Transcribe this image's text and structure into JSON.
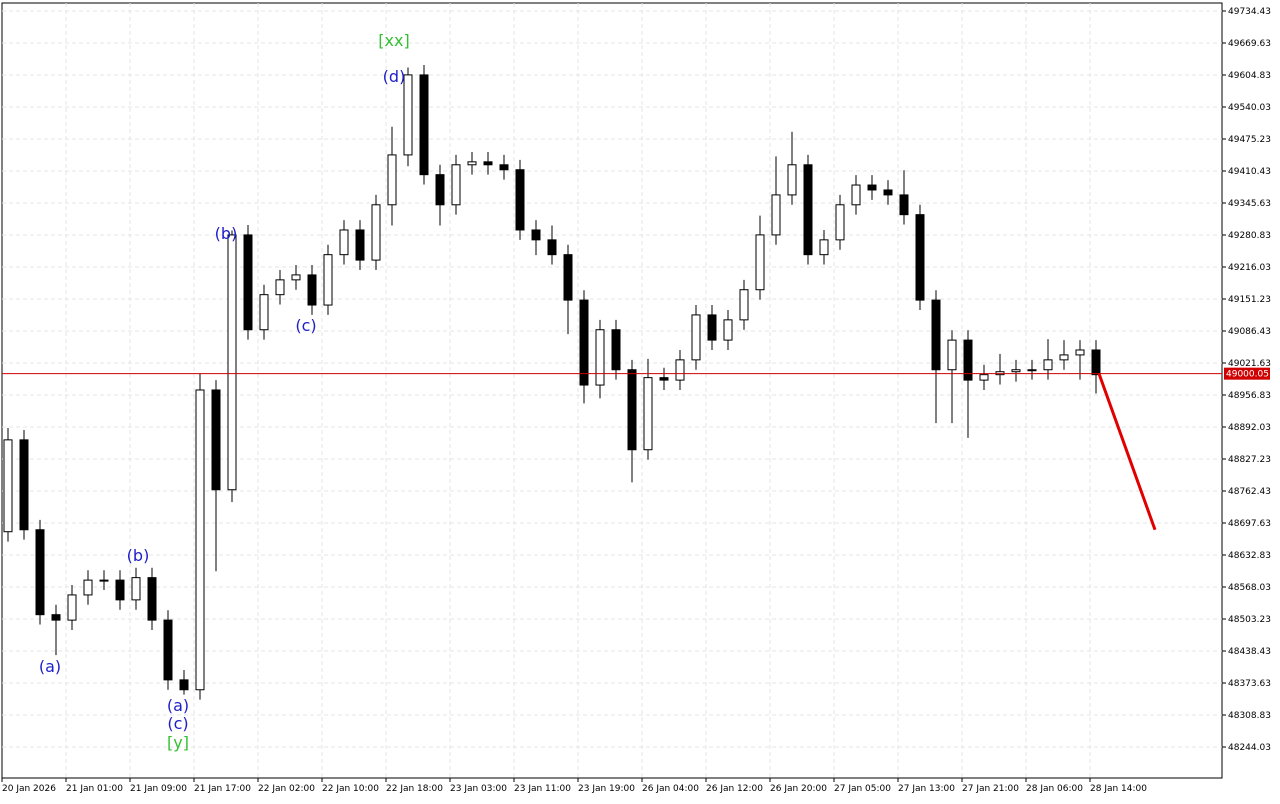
{
  "chart_data": {
    "type": "candlestick",
    "open": [
      48680,
      48866,
      48684,
      48512,
      48501,
      48552,
      48582,
      48582,
      48542,
      48587,
      48501,
      48380,
      48360,
      48967,
      48765,
      49281,
      49089,
      49160,
      49190,
      49200,
      49139,
      49241,
      49291,
      49230,
      49342,
      49443,
      49605,
      49403,
      49342,
      49423,
      49429,
      49423,
      49413,
      49291,
      49271,
      49241,
      49149,
      48977,
      49089,
      49008,
      48846,
      48992,
      48987,
      49028,
      49119,
      49068,
      49109,
      49170,
      49281,
      49362,
      49423,
      49241,
      49271,
      49342,
      49382,
      49372,
      49362,
      49322,
      49149,
      49008,
      49068,
      48987,
      48998,
      49004,
      49008,
      49008,
      49028,
      49038,
      49048
    ],
    "high": [
      48890,
      48886,
      48704,
      48532,
      48572,
      48602,
      48602,
      48602,
      48607,
      48607,
      48521,
      48400,
      49000,
      48987,
      49290,
      49301,
      49180,
      49210,
      49220,
      49220,
      49261,
      49311,
      49311,
      49362,
      49500,
      49620,
      49625,
      49423,
      49443,
      49449,
      49449,
      49443,
      49433,
      49311,
      49300,
      49261,
      49169,
      49109,
      49109,
      49028,
      49030,
      49012,
      49048,
      49139,
      49139,
      49129,
      49190,
      49320,
      49440,
      49490,
      49443,
      49291,
      49362,
      49402,
      49402,
      49392,
      49412,
      49342,
      49169,
      49088,
      49088,
      49018,
      49040,
      49028,
      49028,
      49070,
      49068,
      49068,
      49068
    ],
    "low": [
      48660,
      48664,
      48492,
      48430,
      48481,
      48532,
      48562,
      48522,
      48522,
      48481,
      48360,
      48350,
      48340,
      48600,
      48740,
      49069,
      49069,
      49140,
      49170,
      49119,
      49119,
      49221,
      49210,
      49210,
      49300,
      49420,
      49383,
      49300,
      49322,
      49403,
      49403,
      49393,
      49271,
      49240,
      49221,
      49080,
      48940,
      48950,
      48988,
      48780,
      48826,
      48967,
      48967,
      49008,
      49048,
      49048,
      49089,
      49150,
      49261,
      49342,
      49221,
      49221,
      49251,
      49322,
      49352,
      49342,
      49302,
      49129,
      48900,
      48900,
      48870,
      48967,
      48978,
      48984,
      48988,
      48988,
      49008,
      48988,
      48960
    ],
    "close": [
      48866,
      48684,
      48512,
      48501,
      48552,
      48582,
      48582,
      48542,
      48587,
      48501,
      48380,
      48360,
      48967,
      48765,
      49281,
      49089,
      49160,
      49190,
      49200,
      49139,
      49241,
      49291,
      49230,
      49342,
      49443,
      49605,
      49403,
      49342,
      49423,
      49429,
      49423,
      49413,
      49291,
      49271,
      49241,
      49149,
      48977,
      49089,
      49008,
      48846,
      48992,
      48987,
      49028,
      49119,
      49068,
      49109,
      49170,
      49281,
      49362,
      49423,
      49241,
      49271,
      49342,
      49382,
      49372,
      49362,
      49322,
      49149,
      49008,
      49068,
      48987,
      48998,
      49004,
      49008,
      49008,
      49028,
      49038,
      49048,
      48998
    ],
    "x_labels": [
      "20 Jan 2026",
      "21 Jan 01:00",
      "21 Jan 09:00",
      "21 Jan 17:00",
      "22 Jan 02:00",
      "22 Jan 10:00",
      "22 Jan 18:00",
      "23 Jan 03:00",
      "23 Jan 11:00",
      "23 Jan 19:00",
      "26 Jan 04:00",
      "26 Jan 12:00",
      "26 Jan 20:00",
      "27 Jan 05:00",
      "27 Jan 13:00",
      "27 Jan 21:00",
      "28 Jan 06:00",
      "28 Jan 14:00"
    ],
    "ylim": [
      48181.3,
      49750.6
    ],
    "yticks": [
      {
        "value": 49734.43,
        "label": "49734.43"
      },
      {
        "value": 49669.63,
        "label": "49669.63"
      },
      {
        "value": 49604.83,
        "label": "49604.83"
      },
      {
        "value": 49540.03,
        "label": "49540.03"
      },
      {
        "value": 49475.23,
        "label": "49475.23"
      },
      {
        "value": 49410.43,
        "label": "49410.43"
      },
      {
        "value": 49345.63,
        "label": "49345.63"
      },
      {
        "value": 49280.83,
        "label": "49280.83"
      },
      {
        "value": 49216.03,
        "label": "49216.03"
      },
      {
        "value": 49151.23,
        "label": "49151.23"
      },
      {
        "value": 49086.43,
        "label": "49086.43"
      },
      {
        "value": 49021.63,
        "label": "49021.63"
      },
      {
        "value": 48956.83,
        "label": "48956.83"
      },
      {
        "value": 48892.03,
        "label": "48892.03"
      },
      {
        "value": 48827.23,
        "label": "48827.23"
      },
      {
        "value": 48762.43,
        "label": "48762.43"
      },
      {
        "value": 48697.63,
        "label": "48697.63"
      },
      {
        "value": 48632.83,
        "label": "48632.83"
      },
      {
        "value": 48568.03,
        "label": "48568.03"
      },
      {
        "value": 48503.23,
        "label": "48503.23"
      },
      {
        "value": 48438.43,
        "label": "48438.43"
      },
      {
        "value": 48373.63,
        "label": "48373.63"
      },
      {
        "value": 48308.83,
        "label": "48308.83"
      },
      {
        "value": 48244.03,
        "label": "48244.03"
      }
    ],
    "grid": true,
    "current_price": {
      "value": 49000.05,
      "label": "49000.05",
      "color": "#d00000"
    },
    "forecast": {
      "color": "#e00000",
      "values": [
        49000.05,
        48684
      ]
    },
    "annotations": [
      {
        "text": "(a)",
        "color": "#2020c8"
      },
      {
        "text": "(b)",
        "color": "#2020c8"
      },
      {
        "text": "(a)",
        "color": "#2020c8"
      },
      {
        "text": "(c)",
        "color": "#2020c8"
      },
      {
        "text": "[y]",
        "color": "#33c033"
      },
      {
        "text": "(b)",
        "color": "#2020c8"
      },
      {
        "text": "(c)",
        "color": "#2020c8"
      },
      {
        "text": "[xx]",
        "color": "#33c033"
      },
      {
        "text": "(d)",
        "color": "#2020c8"
      }
    ]
  }
}
